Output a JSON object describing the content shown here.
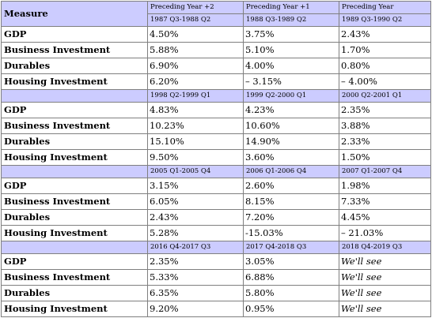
{
  "table": {
    "corner_label": "Measure",
    "top_header": [
      "Preceding Year +2",
      "Preceding Year +1",
      "Preceding Year"
    ],
    "groups": [
      {
        "periods": [
          "1987 Q3-1988 Q2",
          "1988 Q3-1989 Q2",
          "1989 Q3-1990 Q2"
        ],
        "rows": [
          {
            "measure": "GDP",
            "values": [
              "4.50%",
              "3.75%",
              "2.43%"
            ]
          },
          {
            "measure": "Business Investment",
            "values": [
              "5.88%",
              "5.10%",
              "1.70%"
            ]
          },
          {
            "measure": "Durables",
            "values": [
              "6.90%",
              "4.00%",
              "0.80%"
            ]
          },
          {
            "measure": "Housing Investment",
            "values": [
              "6.20%",
              "– 3.15%",
              "– 4.00%"
            ]
          }
        ]
      },
      {
        "periods": [
          "1998 Q2-1999 Q1",
          "1999 Q2-2000 Q1",
          "2000 Q2-2001 Q1"
        ],
        "rows": [
          {
            "measure": "GDP",
            "values": [
              "4.83%",
              "4.23%",
              "2.35%"
            ]
          },
          {
            "measure": "Business Investment",
            "values": [
              "10.23%",
              "10.60%",
              "3.88%"
            ]
          },
          {
            "measure": "Durables",
            "values": [
              "15.10%",
              "14.90%",
              "2.33%"
            ]
          },
          {
            "measure": "Housing Investment",
            "values": [
              "9.50%",
              "3.60%",
              "1.50%"
            ]
          }
        ]
      },
      {
        "periods": [
          "2005 Q1-2005 Q4",
          "2006 Q1-2006 Q4",
          "2007 Q1-2007 Q4"
        ],
        "rows": [
          {
            "measure": "GDP",
            "values": [
              "3.15%",
              "2.60%",
              "1.98%"
            ]
          },
          {
            "measure": "Business Investment",
            "values": [
              "6.05%",
              "8.15%",
              "7.33%"
            ]
          },
          {
            "measure": "Durables",
            "values": [
              "2.43%",
              "7.20%",
              "4.45%"
            ]
          },
          {
            "measure": "Housing Investment",
            "values": [
              "5.28%",
              "-15.03%",
              "– 21.03%"
            ]
          }
        ]
      },
      {
        "periods": [
          "2016 Q4-2017 Q3",
          "2017 Q4-2018 Q3",
          "2018 Q4-2019 Q3"
        ],
        "rows": [
          {
            "measure": "GDP",
            "values": [
              "2.35%",
              "3.05%",
              "We'll see"
            ]
          },
          {
            "measure": "Business Investment",
            "values": [
              "5.33%",
              "6.88%",
              "We'll see"
            ]
          },
          {
            "measure": "Durables",
            "values": [
              "6.35%",
              "5.80%",
              "We'll see"
            ]
          },
          {
            "measure": "Housing Investment",
            "values": [
              "9.20%",
              "0.95%",
              "We'll see"
            ]
          }
        ]
      }
    ]
  }
}
